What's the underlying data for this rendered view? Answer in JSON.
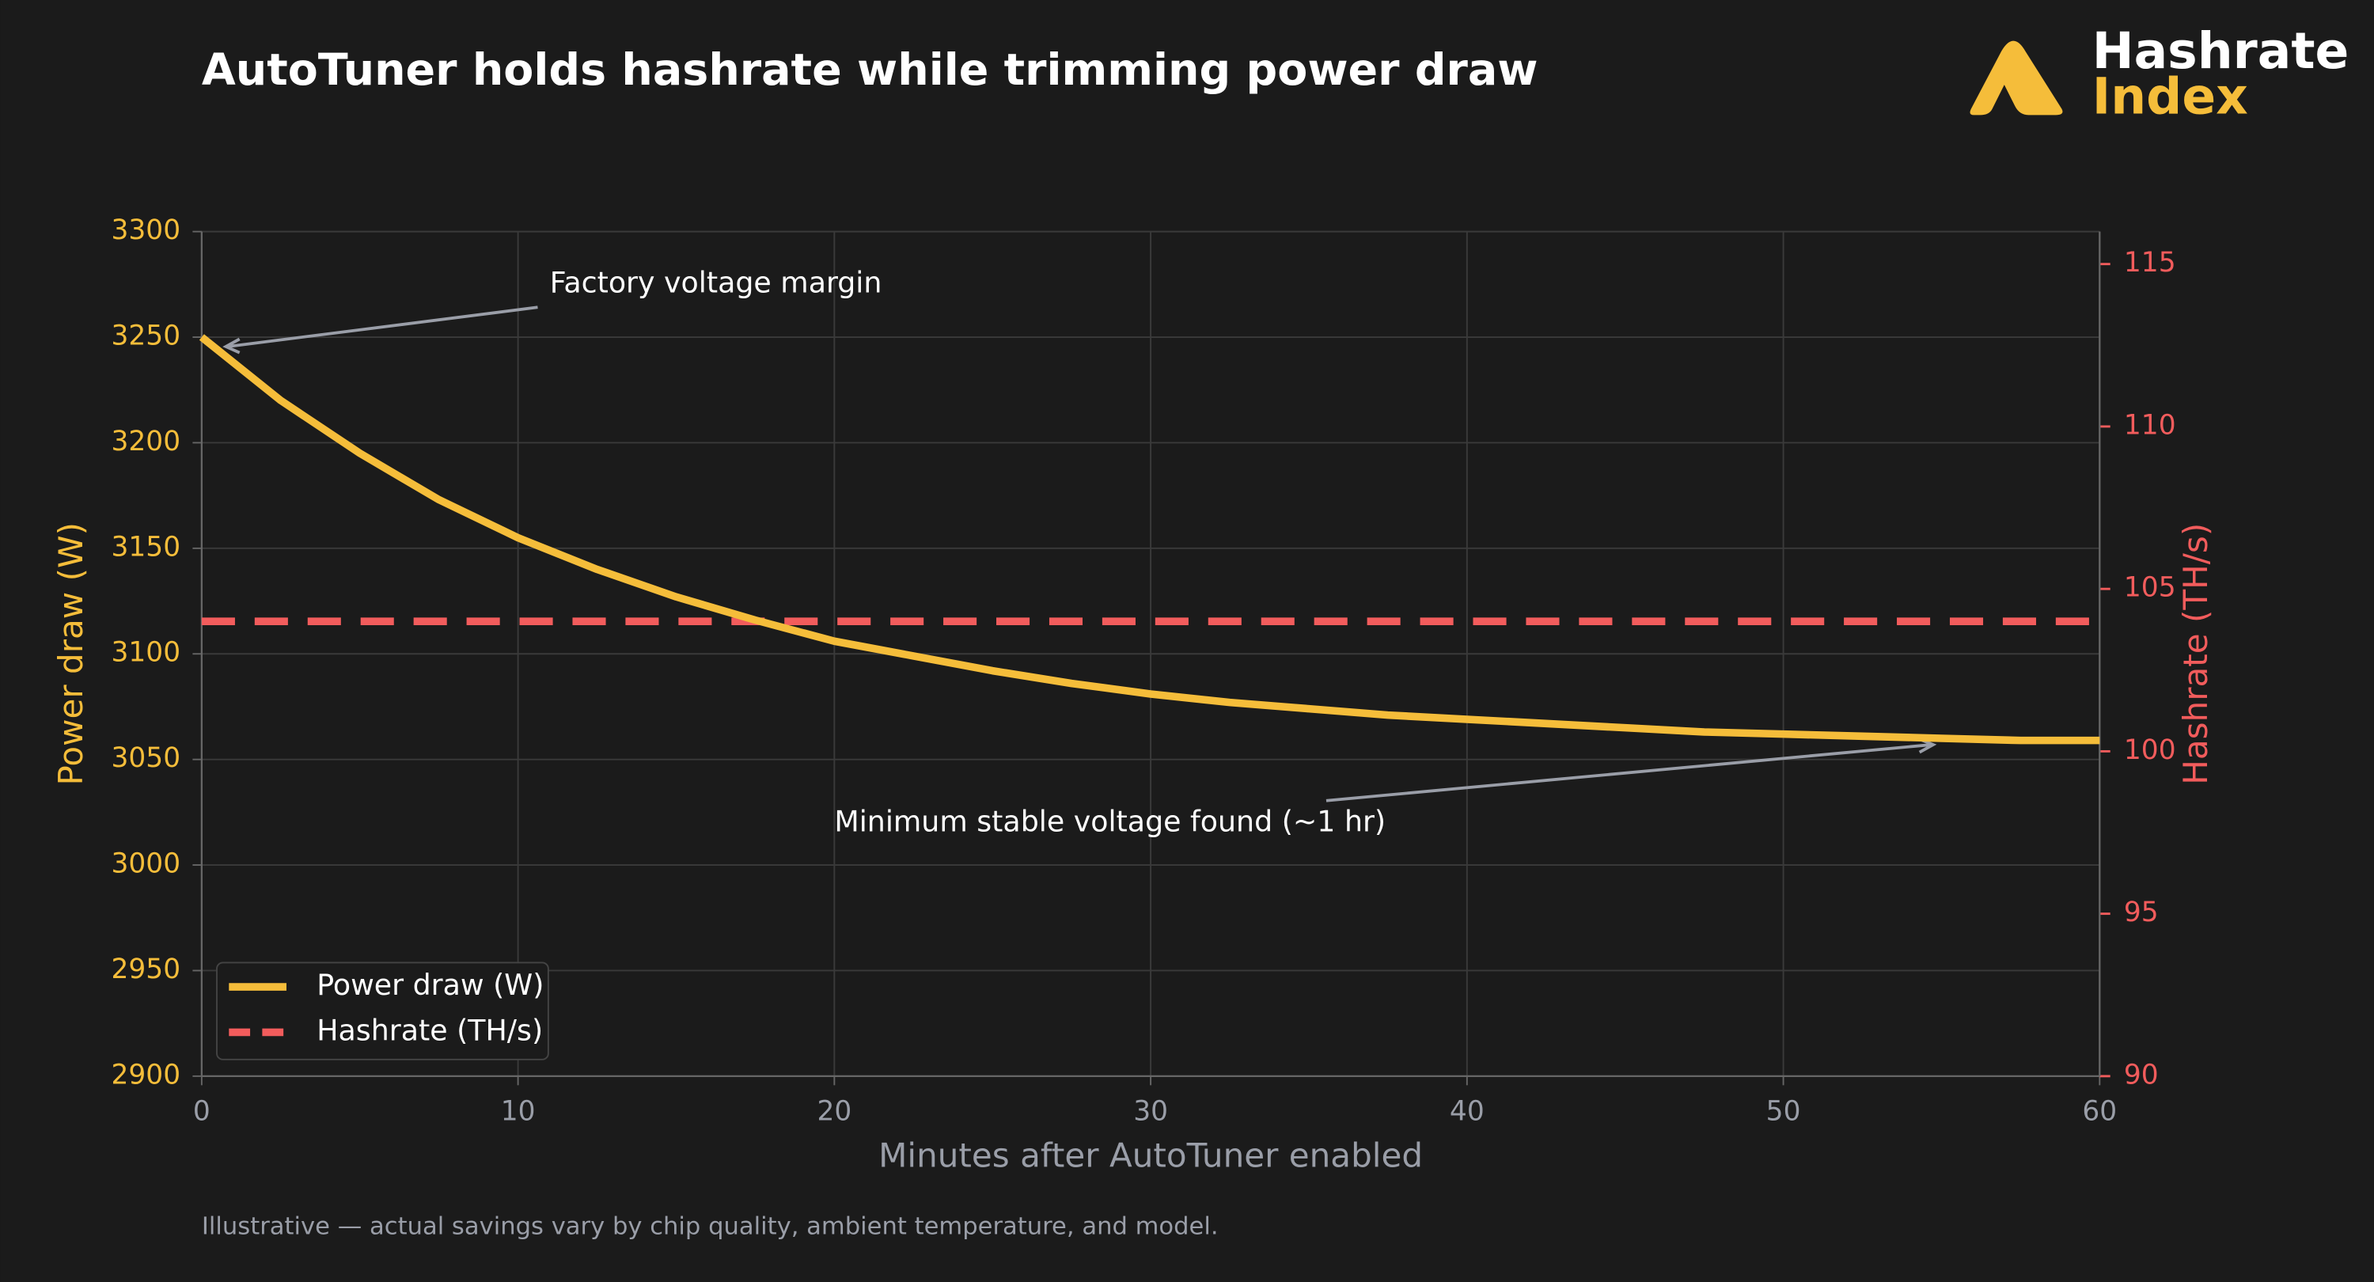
{
  "chart_data": {
    "type": "line",
    "title": "AutoTuner holds hashrate while trimming power draw",
    "brand": [
      "Hashrate",
      "Index"
    ],
    "footnote": "Illustrative — actual savings vary by chip quality, ambient temperature, and model.",
    "xlabel": "Minutes after AutoTuner enabled",
    "ylabel": "Power draw (W)",
    "y2label": "Hashrate (TH/s)",
    "x": [
      0,
      2.5,
      5,
      7.5,
      10,
      12.5,
      15,
      17.5,
      20,
      22.5,
      25,
      27.5,
      30,
      32.5,
      35,
      37.5,
      40,
      42.5,
      45,
      47.5,
      50,
      52.5,
      55,
      57.5,
      60
    ],
    "series": [
      {
        "name": "Power draw (W)",
        "color": "#f5bd3a",
        "linestyle": "solid",
        "values": [
          3250,
          3220,
          3195,
          3173,
          3155,
          3140,
          3127,
          3116,
          3106,
          3099,
          3092,
          3086,
          3081,
          3077,
          3074,
          3071,
          3069,
          3067,
          3065,
          3063,
          3062,
          3061,
          3060,
          3059,
          3059
        ]
      },
      {
        "name": "Hashrate (TH/s)",
        "color": "#f25c5c",
        "linestyle": "dashed",
        "axis": "y2",
        "values": [
          104,
          104,
          104,
          104,
          104,
          104,
          104,
          104,
          104,
          104,
          104,
          104,
          104,
          104,
          104,
          104,
          104,
          104,
          104,
          104,
          104,
          104,
          104,
          104,
          104
        ]
      }
    ],
    "xlim": [
      0,
      60
    ],
    "xticks": [
      0,
      10,
      20,
      30,
      40,
      50,
      60
    ],
    "ylim": [
      2900,
      3300
    ],
    "yticks": [
      2900,
      2950,
      3000,
      3050,
      3100,
      3150,
      3200,
      3250,
      3300
    ],
    "y2lim": [
      90,
      116
    ],
    "y2ticks": [
      90,
      95,
      100,
      105,
      110,
      115
    ],
    "grid": true,
    "legend": "lower left",
    "annotations": [
      "Factory voltage margin",
      "Minimum stable voltage found (~1 hr)"
    ]
  }
}
